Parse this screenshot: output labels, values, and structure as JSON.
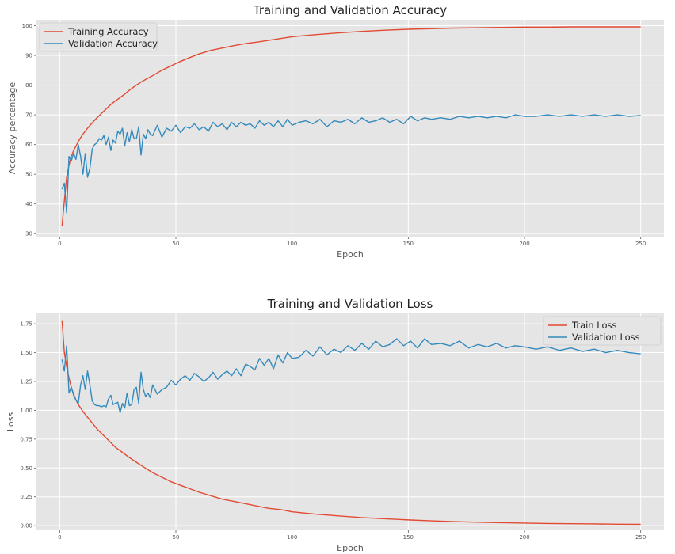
{
  "chart_data": [
    {
      "type": "line",
      "title": "Training and Validation Accuracy",
      "xlabel": "Epoch",
      "ylabel": "Accuracy percentage",
      "xlim": [
        -10,
        260
      ],
      "ylim": [
        29,
        102
      ],
      "xticks": [
        0,
        50,
        100,
        150,
        200,
        250
      ],
      "yticks": [
        30,
        40,
        50,
        60,
        70,
        80,
        90,
        100
      ],
      "tick_decimals": 0,
      "grid": true,
      "legend_position": "top-left",
      "series": [
        {
          "name": "Training Accuracy",
          "color": "#e24a33",
          "x": [
            1,
            2,
            3,
            4,
            5,
            6,
            7,
            8,
            9,
            10,
            12,
            14,
            16,
            18,
            20,
            22,
            24,
            26,
            28,
            30,
            33,
            36,
            40,
            44,
            48,
            52,
            56,
            60,
            65,
            70,
            75,
            80,
            85,
            90,
            95,
            100,
            110,
            120,
            130,
            140,
            150,
            160,
            170,
            180,
            190,
            200,
            210,
            220,
            230,
            240,
            250
          ],
          "y": [
            32.5,
            41,
            49,
            53,
            56,
            58,
            59.5,
            61,
            62.3,
            63.5,
            65.5,
            67.3,
            69,
            70.5,
            72,
            73.5,
            74.7,
            75.8,
            77,
            78.3,
            80,
            81.5,
            83.2,
            85,
            86.5,
            88,
            89.3,
            90.5,
            91.7,
            92.5,
            93.3,
            94,
            94.5,
            95.1,
            95.7,
            96.3,
            97,
            97.6,
            98.1,
            98.5,
            98.8,
            99,
            99.2,
            99.3,
            99.4,
            99.5,
            99.5,
            99.6,
            99.6,
            99.6,
            99.6
          ]
        },
        {
          "name": "Validation Accuracy",
          "color": "#348abd",
          "x": [
            1,
            2,
            3,
            4,
            5,
            6,
            7,
            8,
            9,
            10,
            11,
            12,
            13,
            14,
            15,
            16,
            17,
            18,
            19,
            20,
            21,
            22,
            23,
            24,
            25,
            26,
            27,
            28,
            29,
            30,
            31,
            32,
            33,
            34,
            35,
            36,
            37,
            38,
            39,
            40,
            42,
            44,
            46,
            48,
            50,
            52,
            54,
            56,
            58,
            60,
            62,
            64,
            66,
            68,
            70,
            72,
            74,
            76,
            78,
            80,
            82,
            84,
            86,
            88,
            90,
            92,
            94,
            96,
            98,
            100,
            103,
            106,
            109,
            112,
            115,
            118,
            121,
            124,
            127,
            130,
            133,
            136,
            139,
            142,
            145,
            148,
            151,
            154,
            157,
            160,
            164,
            168,
            172,
            176,
            180,
            184,
            188,
            192,
            196,
            200,
            205,
            210,
            215,
            220,
            225,
            230,
            235,
            240,
            245,
            250
          ],
          "y": [
            45,
            47,
            37,
            56,
            54.5,
            57,
            55,
            60,
            56,
            50,
            57,
            49,
            52,
            58.5,
            60,
            60.5,
            62,
            61.5,
            63,
            60,
            62.5,
            58,
            61.5,
            60.5,
            64.5,
            63.5,
            65.5,
            59.5,
            64,
            61,
            65,
            62,
            62,
            66,
            56.5,
            63.5,
            62,
            65,
            63.5,
            63,
            66.5,
            62.5,
            65.5,
            64.5,
            66.5,
            64,
            66,
            65.5,
            67,
            65,
            66,
            64.5,
            67.5,
            66,
            67,
            65,
            67.5,
            66,
            67.5,
            66.5,
            67,
            65.5,
            68,
            66.5,
            67.5,
            66,
            68,
            66,
            68.5,
            66.5,
            67.5,
            68,
            67,
            68.5,
            66,
            68,
            67.5,
            68.5,
            67,
            69,
            67.5,
            68,
            69,
            67.5,
            68.5,
            67,
            69.5,
            68,
            69,
            68.5,
            69,
            68.5,
            69.5,
            69,
            69.5,
            69,
            69.5,
            69,
            70,
            69.5,
            69.5,
            70,
            69.5,
            70,
            69.5,
            70,
            69.5,
            70,
            69.5,
            69.8
          ]
        }
      ]
    },
    {
      "type": "line",
      "title": "Training and Validation Loss",
      "xlabel": "Epoch",
      "ylabel": "Loss",
      "xlim": [
        -10,
        260
      ],
      "ylim": [
        -0.04,
        1.84
      ],
      "xticks": [
        0,
        50,
        100,
        150,
        200,
        250
      ],
      "yticks": [
        0,
        0.25,
        0.5,
        0.75,
        1.0,
        1.25,
        1.5,
        1.75
      ],
      "tick_decimals": 2,
      "grid": true,
      "legend_position": "top-right",
      "series": [
        {
          "name": "Train Loss",
          "color": "#e24a33",
          "x": [
            1,
            2,
            3,
            4,
            5,
            6,
            7,
            8,
            9,
            10,
            12,
            14,
            16,
            18,
            20,
            22,
            24,
            26,
            28,
            30,
            33,
            36,
            40,
            44,
            48,
            52,
            56,
            60,
            65,
            70,
            75,
            80,
            85,
            90,
            95,
            100,
            110,
            120,
            130,
            140,
            150,
            160,
            170,
            180,
            190,
            200,
            210,
            220,
            230,
            240,
            250
          ],
          "y": [
            1.78,
            1.5,
            1.38,
            1.28,
            1.2,
            1.14,
            1.09,
            1.05,
            1.02,
            0.99,
            0.94,
            0.89,
            0.84,
            0.8,
            0.76,
            0.72,
            0.68,
            0.65,
            0.62,
            0.59,
            0.55,
            0.51,
            0.46,
            0.42,
            0.38,
            0.35,
            0.32,
            0.29,
            0.26,
            0.23,
            0.21,
            0.19,
            0.17,
            0.15,
            0.14,
            0.12,
            0.1,
            0.085,
            0.07,
            0.06,
            0.05,
            0.042,
            0.035,
            0.03,
            0.026,
            0.022,
            0.019,
            0.017,
            0.015,
            0.013,
            0.012
          ]
        },
        {
          "name": "Validation Loss",
          "color": "#348abd",
          "x": [
            1,
            2,
            3,
            4,
            5,
            6,
            7,
            8,
            9,
            10,
            11,
            12,
            13,
            14,
            15,
            16,
            17,
            18,
            19,
            20,
            21,
            22,
            23,
            24,
            25,
            26,
            27,
            28,
            29,
            30,
            31,
            32,
            33,
            34,
            35,
            36,
            37,
            38,
            39,
            40,
            42,
            44,
            46,
            48,
            50,
            52,
            54,
            56,
            58,
            60,
            62,
            64,
            66,
            68,
            70,
            72,
            74,
            76,
            78,
            80,
            82,
            84,
            86,
            88,
            90,
            92,
            94,
            96,
            98,
            100,
            103,
            106,
            109,
            112,
            115,
            118,
            121,
            124,
            127,
            130,
            133,
            136,
            139,
            142,
            145,
            148,
            151,
            154,
            157,
            160,
            164,
            168,
            172,
            176,
            180,
            184,
            188,
            192,
            196,
            200,
            205,
            210,
            215,
            220,
            225,
            230,
            235,
            240,
            245,
            250
          ],
          "y": [
            1.44,
            1.34,
            1.56,
            1.15,
            1.2,
            1.13,
            1.09,
            1.06,
            1.22,
            1.3,
            1.18,
            1.34,
            1.22,
            1.08,
            1.05,
            1.04,
            1.04,
            1.03,
            1.04,
            1.03,
            1.1,
            1.13,
            1.05,
            1.06,
            1.07,
            0.98,
            1.06,
            1.02,
            1.15,
            1.04,
            1.05,
            1.18,
            1.2,
            1.06,
            1.33,
            1.18,
            1.12,
            1.15,
            1.11,
            1.22,
            1.14,
            1.18,
            1.2,
            1.26,
            1.22,
            1.27,
            1.3,
            1.26,
            1.32,
            1.29,
            1.25,
            1.28,
            1.33,
            1.27,
            1.31,
            1.34,
            1.3,
            1.36,
            1.3,
            1.4,
            1.38,
            1.35,
            1.45,
            1.39,
            1.45,
            1.36,
            1.48,
            1.41,
            1.5,
            1.45,
            1.46,
            1.52,
            1.47,
            1.55,
            1.48,
            1.53,
            1.5,
            1.56,
            1.52,
            1.58,
            1.53,
            1.6,
            1.55,
            1.57,
            1.62,
            1.56,
            1.6,
            1.54,
            1.62,
            1.57,
            1.58,
            1.56,
            1.6,
            1.54,
            1.57,
            1.55,
            1.58,
            1.54,
            1.56,
            1.55,
            1.53,
            1.55,
            1.52,
            1.54,
            1.51,
            1.53,
            1.5,
            1.52,
            1.5,
            1.49
          ]
        }
      ]
    }
  ]
}
